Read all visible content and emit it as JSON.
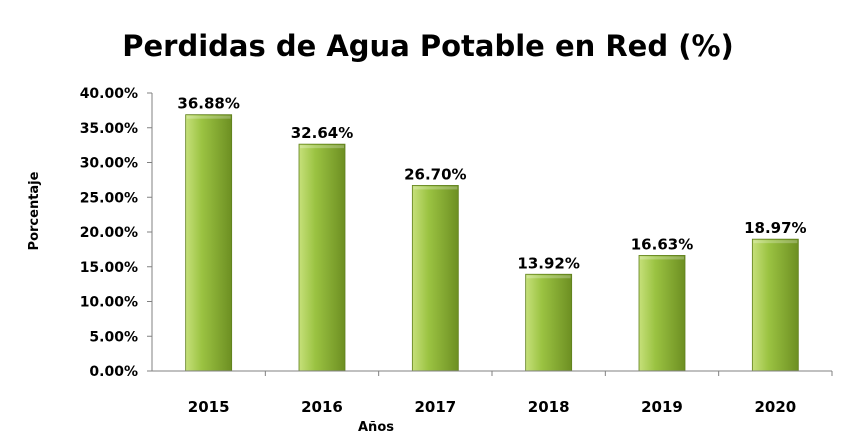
{
  "chart_data": {
    "type": "bar",
    "title": "Perdidas de Agua Potable en Red (%)",
    "xlabel": "Años",
    "ylabel": "Porcentaje",
    "categories": [
      "2015",
      "2016",
      "2017",
      "2018",
      "2019",
      "2020"
    ],
    "values": [
      36.88,
      32.64,
      26.7,
      13.92,
      16.63,
      18.97
    ],
    "data_labels": [
      "36.88%",
      "32.64%",
      "26.70%",
      "13.92%",
      "16.63%",
      "18.97%"
    ],
    "ylim": [
      0,
      40
    ],
    "yticks": [
      0,
      5,
      10,
      15,
      20,
      25,
      30,
      35,
      40
    ],
    "ytick_labels": [
      "0.00%",
      "5.00%",
      "10.00%",
      "15.00%",
      "20.00%",
      "25.00%",
      "30.00%",
      "35.00%",
      "40.00%"
    ],
    "grid": false,
    "legend": "none",
    "colors": {
      "bar_light": "#c6e07a",
      "bar_mid": "#9bc342",
      "bar_dark": "#6d8f22",
      "bar_edge": "#5f7f1c",
      "axis": "#808080"
    }
  }
}
